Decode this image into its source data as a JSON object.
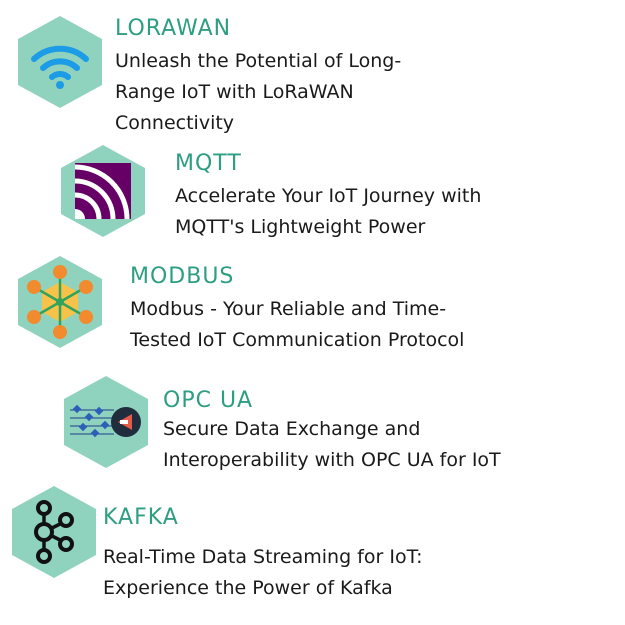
{
  "colors": {
    "hex": "#8fd3bf",
    "title": "#2e9e82",
    "text": "#1a1a1a"
  },
  "items": [
    {
      "title": "LORAWAN",
      "lines": [
        "Unleash the Potential of Long-",
        "Range IoT with LoRaWAN",
        "Connectivity"
      ],
      "icon": "wifi-icon"
    },
    {
      "title": "MQTT",
      "lines": [
        "Accelerate Your IoT Journey with",
        "MQTT's Lightweight Power"
      ],
      "icon": "mqtt-logo-icon"
    },
    {
      "title": "MODBUS",
      "lines": [
        "Modbus - Your Reliable and Time-",
        "Tested IoT Communication Protocol"
      ],
      "icon": "network-node-icon"
    },
    {
      "title": "OPC UA",
      "lines": [
        "Secure Data Exchange and",
        "Interoperability with OPC UA for IoT"
      ],
      "icon": "data-transfer-icon"
    },
    {
      "title": "KAFKA",
      "lines": [
        "Real-Time Data Streaming for IoT:",
        "Experience the Power of Kafka"
      ],
      "icon": "kafka-logo-icon"
    }
  ]
}
